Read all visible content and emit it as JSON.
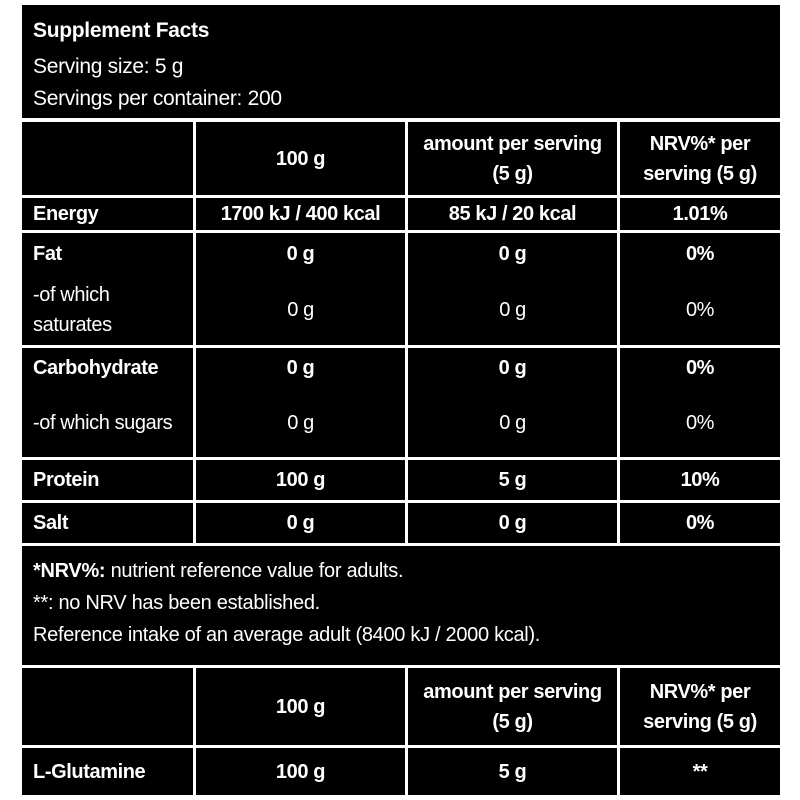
{
  "header": {
    "title": "Supplement Facts",
    "serving_size": "Serving size: 5 g",
    "servings": "Servings per container: 200"
  },
  "table1": {
    "columns": [
      "100 g",
      "amount per serving (5 g)",
      "NRV%* per serving (5 g)"
    ],
    "groups": [
      {
        "rows": [
          [
            "Energy",
            "1700 kJ / 400 kcal",
            "85 kJ / 20 kcal",
            "1.01%"
          ]
        ]
      },
      {
        "rows": [
          [
            "Fat",
            "0 g",
            "0 g",
            "0%"
          ],
          [
            "-of which saturates",
            "0 g",
            "0 g",
            "0%"
          ]
        ]
      },
      {
        "rows": [
          [
            "Carbohydrate",
            "0 g",
            "0 g",
            "0%"
          ],
          [
            "-of which sugars",
            "0 g",
            "0 g",
            "0%"
          ]
        ]
      },
      {
        "rows": [
          [
            "Protein",
            "100 g",
            "5 g",
            "10%"
          ]
        ]
      },
      {
        "rows": [
          [
            "Salt",
            "0 g",
            "0 g",
            "0%"
          ]
        ]
      }
    ]
  },
  "notes": [
    {
      "term": "*NRV%:",
      "text": "nutrient reference value for adults."
    },
    {
      "text": "**: no NRV has been established."
    },
    {
      "text": "Reference intake of an average adult (8400 kJ / 2000 kcal)."
    }
  ],
  "table2": {
    "columns": [
      "100 g",
      "amount per serving (5 g)",
      "NRV%* per serving (5 g)"
    ],
    "rows": [
      [
        "L-Glutamine",
        "100 g",
        "5 g",
        "**"
      ]
    ]
  }
}
